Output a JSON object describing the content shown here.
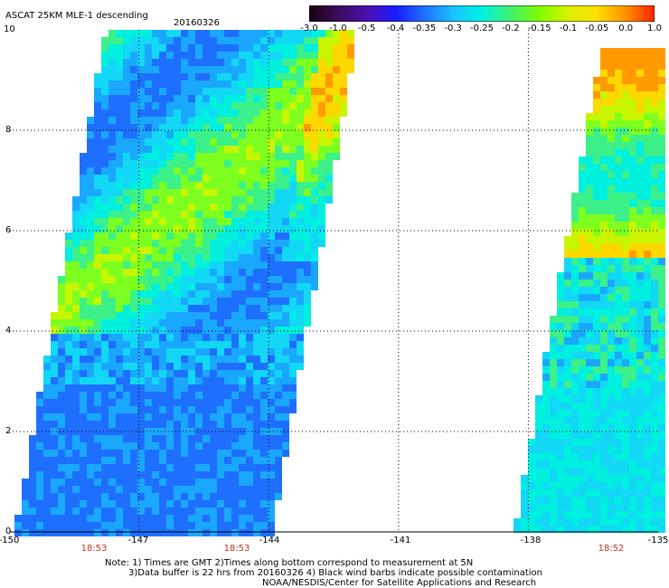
{
  "header": {
    "product": "ASCAT 25KM MLE-1 descending",
    "date": "20160326"
  },
  "colorbar": {
    "labels": [
      "-3.0",
      "-1.0",
      "-0.5",
      "-0.4",
      "-0.35",
      "-0.3",
      "-0.25",
      "-0.2",
      "-0.15",
      "-0.1",
      "-0.05",
      "0.0",
      "1.0"
    ],
    "colors": [
      "#1a0010",
      "#3b0a5a",
      "#4a10b0",
      "#1a1aff",
      "#1f6fff",
      "#19c2ff",
      "#00f2e0",
      "#40f070",
      "#7dff00",
      "#d8f000",
      "#ffe000",
      "#ff9000",
      "#ff2000"
    ]
  },
  "axes": {
    "x_ticks": [
      "-150",
      "-147",
      "-144",
      "-141",
      "-138",
      "-135"
    ],
    "y_ticks": [
      "0",
      "2",
      "4",
      "6",
      "8",
      "10"
    ],
    "xlim": [
      -150,
      -135
    ],
    "ylim": [
      0,
      10
    ]
  },
  "pass_times": [
    {
      "label": "18:53",
      "lon": -148
    },
    {
      "label": "18:53",
      "lon": -145
    },
    {
      "label": "18:52",
      "lon": -136
    }
  ],
  "notes": {
    "line1": "Note: 1) Times are GMT 2)Times along bottom correspond to measurement at 5N",
    "line2": "3)Data buffer is 22 hrs from 20160326 4) Black wind barbs indicate possible contamination",
    "line3": "NOAA/NESDIS/Center for Satellite Applications and Research"
  }
}
